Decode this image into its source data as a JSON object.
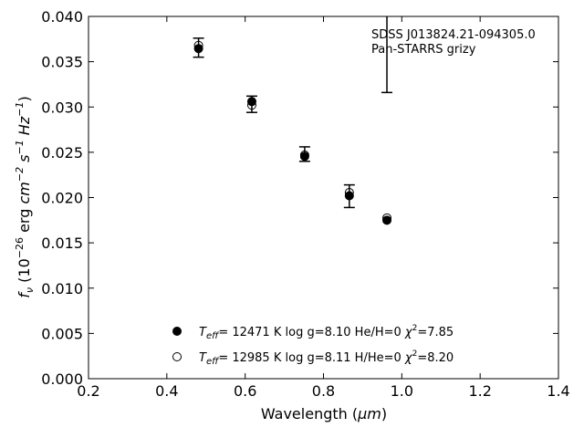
{
  "chart_data": {
    "type": "scatter",
    "xlabel_main": "Wavelength (",
    "xlabel_unit": "μm",
    "xlabel_close": ")",
    "ylabel_parts": {
      "f": "f",
      "nu": "ν",
      "open": " (10",
      "exp1": "−26",
      "mid1": " erg ",
      "cm": "cm",
      "exp2": "−2",
      "s": " s",
      "exp3": "−1",
      "hz": " Hz",
      "exp4": "−1",
      "close": ")"
    },
    "xlim": [
      0.2,
      1.4
    ],
    "ylim": [
      0.0,
      0.04
    ],
    "xticks": [
      "0.2",
      "0.4",
      "0.6",
      "0.8",
      "1.0",
      "1.2",
      "1.4"
    ],
    "yticks": [
      "0.000",
      "0.005",
      "0.010",
      "0.015",
      "0.020",
      "0.025",
      "0.030",
      "0.035",
      "0.040"
    ],
    "annotation": [
      "SDSS J013824.21-094305.0",
      "Pan-STARRS grizy"
    ],
    "observed": {
      "x": [
        0.481,
        0.617,
        0.752,
        0.866,
        0.962
      ],
      "y": [
        0.03655,
        0.0303,
        0.0248,
        0.02015,
        0.0
      ],
      "yerr": [
        0.00105,
        0.0009,
        0.0008,
        0.00125,
        0.0
      ]
    },
    "observed_upper_error_bar": {
      "x": 0.962,
      "y_low": 0.0316,
      "y_high": 0.0405
    },
    "series": [
      {
        "legend": {
          "teff_label": "T",
          "teff_sub": "eff",
          "teff_value": "= 12471 K  log g=8.10  He/H=0  ",
          "chi": "χ",
          "chi_exp": "2",
          "chi_value": "=7.85"
        },
        "marker": "filled",
        "x": [
          0.481,
          0.617,
          0.752,
          0.866,
          0.962
        ],
        "y": [
          0.03645,
          0.0306,
          0.02455,
          0.0202,
          0.0175
        ]
      },
      {
        "legend": {
          "teff_label": "T",
          "teff_sub": "eff",
          "teff_value": "= 12985 K  log g=8.11  H/He=0  ",
          "chi": "χ",
          "chi_exp": "2",
          "chi_value": "=8.20"
        },
        "marker": "open",
        "x": [
          0.481,
          0.617,
          0.752,
          0.866,
          0.962
        ],
        "y": [
          0.0368,
          0.0302,
          0.0247,
          0.02055,
          0.01775
        ]
      }
    ],
    "colors": {
      "marker": "#000000",
      "axes": "#000000",
      "background": "#ffffff"
    }
  }
}
